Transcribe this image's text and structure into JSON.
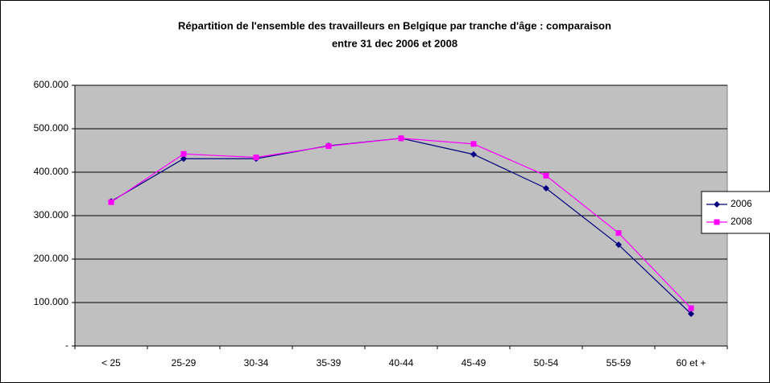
{
  "chart_data": {
    "type": "line",
    "title": [
      "Répartition de l'ensemble des travailleurs en Belgique par tranche d'âge : comparaison",
      "entre 31 dec 2006 et 2008"
    ],
    "categories": [
      "< 25",
      "25-29",
      "30-34",
      "35-39",
      "40-44",
      "45-49",
      "50-54",
      "55-59",
      "60 et +"
    ],
    "series": [
      {
        "name": "2006",
        "color": "#000080",
        "marker": "diamond",
        "values": [
          333000,
          431000,
          431000,
          461000,
          478000,
          441000,
          363000,
          233000,
          74000
        ]
      },
      {
        "name": "2008",
        "color": "#ff00ff",
        "marker": "square",
        "values": [
          331000,
          442000,
          434000,
          460000,
          478000,
          465000,
          392000,
          260000,
          87000
        ]
      }
    ],
    "ylim": [
      0,
      600000
    ],
    "yticks": [
      {
        "value": 0,
        "label": "-"
      },
      {
        "value": 100000,
        "label": "100.000"
      },
      {
        "value": 200000,
        "label": "200.000"
      },
      {
        "value": 300000,
        "label": "300.000"
      },
      {
        "value": 400000,
        "label": "400.000"
      },
      {
        "value": 500000,
        "label": "500.000"
      },
      {
        "value": 600000,
        "label": "600.000"
      }
    ],
    "grid": true,
    "plot_background": "#c0c0c0",
    "legend": "right"
  }
}
